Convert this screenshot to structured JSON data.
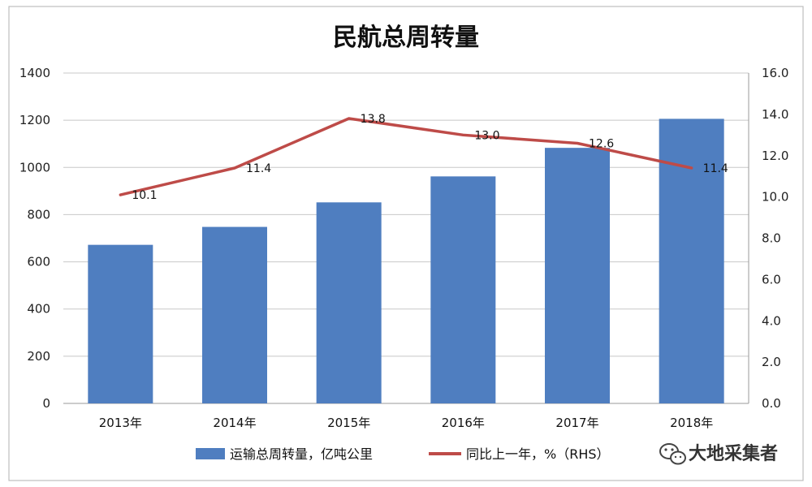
{
  "chart_data": {
    "type": "bar",
    "title": "民航总周转量",
    "categories": [
      "2013年",
      "2014年",
      "2015年",
      "2016年",
      "2017年",
      "2018年"
    ],
    "series": [
      {
        "name": "运输总周转量，亿吨公里",
        "type": "bar",
        "axis": "left",
        "color": "#4f7ec0",
        "values": [
          672,
          748,
          852,
          962,
          1083,
          1206
        ]
      },
      {
        "name": "同比上一年，%（RHS）",
        "type": "line",
        "axis": "right",
        "color": "#be4b48",
        "values": [
          10.1,
          11.4,
          13.8,
          13.0,
          12.6,
          11.4
        ],
        "labels": [
          "10.1",
          "11.4",
          "13.8",
          "13.0",
          "12.6",
          "11.4"
        ]
      }
    ],
    "ylim": [
      0,
      1400
    ],
    "yticks": [
      "0",
      "200",
      "400",
      "600",
      "800",
      "1000",
      "1200",
      "1400"
    ],
    "ylim_right": [
      0,
      16
    ],
    "yticks_right": [
      "0.0",
      "2.0",
      "4.0",
      "6.0",
      "8.0",
      "10.0",
      "12.0",
      "14.0",
      "16.0"
    ],
    "grid": true,
    "legend_position": "bottom"
  },
  "watermark": {
    "text": "大地采集者",
    "icon": "wechat-icon"
  }
}
